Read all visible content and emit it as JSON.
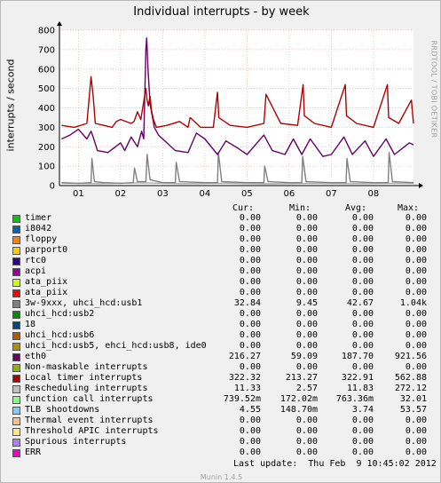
{
  "chart_data": {
    "type": "line",
    "title": "Individual interrupts - by week",
    "ylabel": "interrupts / second",
    "ylim": [
      0,
      800
    ],
    "yticks": [
      0,
      100,
      200,
      300,
      400,
      500,
      600,
      700,
      800
    ],
    "xticks": [
      "01",
      "02",
      "03",
      "04",
      "05",
      "06",
      "07",
      "08"
    ],
    "xlim": [
      0.55,
      8.95
    ],
    "grid": true,
    "series": [
      {
        "name": "Local timer interrupts",
        "color": "#b00000",
        "x": [
          0.6,
          0.9,
          1.2,
          1.3,
          1.35,
          1.4,
          1.6,
          1.8,
          1.9,
          2.0,
          2.25,
          2.32,
          2.4,
          2.48,
          2.6,
          2.63,
          2.66,
          2.7,
          2.73,
          2.78,
          2.85,
          3.1,
          3.4,
          3.6,
          3.65,
          3.9,
          4.2,
          4.3,
          4.33,
          4.6,
          5.0,
          5.4,
          5.45,
          5.8,
          6.2,
          6.33,
          6.36,
          6.6,
          7.0,
          7.33,
          7.36,
          7.6,
          8.0,
          8.33,
          8.36,
          8.6,
          8.9,
          8.95
        ],
        "values": [
          310,
          300,
          320,
          560,
          460,
          320,
          310,
          300,
          330,
          340,
          320,
          330,
          380,
          340,
          500,
          440,
          410,
          460,
          390,
          340,
          300,
          310,
          330,
          300,
          350,
          300,
          300,
          480,
          350,
          310,
          300,
          320,
          470,
          320,
          310,
          520,
          360,
          320,
          300,
          520,
          360,
          320,
          300,
          520,
          350,
          320,
          440,
          320
        ]
      },
      {
        "name": "eth0",
        "color": "#660066",
        "x": [
          0.6,
          0.8,
          1.0,
          1.2,
          1.3,
          1.35,
          1.45,
          1.7,
          2.0,
          2.1,
          2.25,
          2.4,
          2.5,
          2.55,
          2.6,
          2.62,
          2.65,
          2.7,
          2.75,
          2.8,
          2.9,
          3.1,
          3.3,
          3.6,
          3.8,
          4.0,
          4.3,
          4.5,
          4.8,
          5.0,
          5.4,
          5.6,
          5.9,
          6.1,
          6.3,
          6.5,
          6.8,
          7.0,
          7.3,
          7.5,
          7.8,
          8.0,
          8.3,
          8.5,
          8.85,
          8.95
        ],
        "values": [
          240,
          260,
          290,
          240,
          280,
          250,
          180,
          170,
          220,
          180,
          250,
          200,
          280,
          240,
          700,
          760,
          600,
          420,
          360,
          300,
          260,
          220,
          180,
          170,
          270,
          240,
          160,
          230,
          190,
          160,
          260,
          180,
          160,
          240,
          160,
          240,
          150,
          160,
          250,
          160,
          230,
          150,
          240,
          160,
          220,
          210
        ]
      },
      {
        "name": "3w-9xxx, uhci_hcd:usb1",
        "color": "#808080",
        "x": [
          0.6,
          1.0,
          1.3,
          1.32,
          1.38,
          1.6,
          2.0,
          2.3,
          2.33,
          2.4,
          2.6,
          2.63,
          2.7,
          3.0,
          3.3,
          3.32,
          3.4,
          4.0,
          4.3,
          4.32,
          4.4,
          5.0,
          5.4,
          5.42,
          5.5,
          6.0,
          6.3,
          6.32,
          6.4,
          7.0,
          7.35,
          7.37,
          7.45,
          8.0,
          8.35,
          8.37,
          8.45,
          8.95
        ],
        "values": [
          15,
          12,
          15,
          140,
          20,
          15,
          12,
          15,
          90,
          20,
          20,
          160,
          30,
          15,
          15,
          120,
          20,
          15,
          15,
          170,
          20,
          15,
          15,
          100,
          20,
          15,
          15,
          150,
          20,
          15,
          15,
          140,
          20,
          15,
          15,
          170,
          20,
          15
        ]
      },
      {
        "name": "Rescheduling interrupts",
        "color": "#a8a8a8",
        "x": [
          0.6,
          1.5,
          2.5,
          3.5,
          4.5,
          5.5,
          6.5,
          7.5,
          8.5,
          8.95
        ],
        "values": [
          12,
          10,
          14,
          10,
          12,
          9,
          11,
          10,
          12,
          11
        ]
      }
    ]
  },
  "legend": {
    "headers": {
      "cur": "Cur:",
      "min": "Min:",
      "avg": "Avg:",
      "max": "Max:"
    },
    "rows": [
      {
        "name": "timer",
        "color": "#00cc00",
        "cur": "0.00",
        "min": "0.00",
        "avg": "0.00",
        "max": "0.00"
      },
      {
        "name": "i8042",
        "color": "#0066b3",
        "cur": "0.00",
        "min": "0.00",
        "avg": "0.00",
        "max": "0.00"
      },
      {
        "name": "floppy",
        "color": "#ff8000",
        "cur": "0.00",
        "min": "0.00",
        "avg": "0.00",
        "max": "0.00"
      },
      {
        "name": "parport0",
        "color": "#ffcc00",
        "cur": "0.00",
        "min": "0.00",
        "avg": "0.00",
        "max": "0.00"
      },
      {
        "name": "rtc0",
        "color": "#330099",
        "cur": "0.00",
        "min": "0.00",
        "avg": "0.00",
        "max": "0.00"
      },
      {
        "name": "acpi",
        "color": "#990099",
        "cur": "0.00",
        "min": "0.00",
        "avg": "0.00",
        "max": "0.00"
      },
      {
        "name": "ata_piix",
        "color": "#ccff00",
        "cur": "0.00",
        "min": "0.00",
        "avg": "0.00",
        "max": "0.00"
      },
      {
        "name": "ata_piix",
        "color": "#ff0000",
        "cur": "0.00",
        "min": "0.00",
        "avg": "0.00",
        "max": "0.00"
      },
      {
        "name": "3w-9xxx, uhci_hcd:usb1",
        "color": "#808080",
        "cur": "32.84",
        "min": "9.45",
        "avg": "42.67",
        "max": "1.04k"
      },
      {
        "name": "uhci_hcd:usb2",
        "color": "#008f00",
        "cur": "0.00",
        "min": "0.00",
        "avg": "0.00",
        "max": "0.00"
      },
      {
        "name": "18",
        "color": "#00487d",
        "cur": "0.00",
        "min": "0.00",
        "avg": "0.00",
        "max": "0.00"
      },
      {
        "name": "uhci_hcd:usb6",
        "color": "#b35a00",
        "cur": "0.00",
        "min": "0.00",
        "avg": "0.00",
        "max": "0.00"
      },
      {
        "name": "uhci_hcd:usb5, ehci_hcd:usb8, ide0",
        "color": "#b38f00",
        "cur": "0.00",
        "min": "0.00",
        "avg": "0.00",
        "max": "0.00"
      },
      {
        "name": "eth0",
        "color": "#6b006b",
        "cur": "216.27",
        "min": "59.09",
        "avg": "187.70",
        "max": "921.56"
      },
      {
        "name": "Non-maskable interrupts",
        "color": "#8fb300",
        "cur": "0.00",
        "min": "0.00",
        "avg": "0.00",
        "max": "0.00"
      },
      {
        "name": "Local timer interrupts",
        "color": "#b30000",
        "cur": "322.32",
        "min": "213.27",
        "avg": "322.91",
        "max": "562.88"
      },
      {
        "name": "Rescheduling interrupts",
        "color": "#bebebe",
        "cur": "11.33",
        "min": "2.57",
        "avg": "11.83",
        "max": "272.12"
      },
      {
        "name": "function call interrupts",
        "color": "#80ff80",
        "cur": "739.52m",
        "min": "172.02m",
        "avg": "763.36m",
        "max": "32.01"
      },
      {
        "name": "TLB shootdowns",
        "color": "#80c9ff",
        "cur": "4.55",
        "min": "148.70m",
        "avg": "3.74",
        "max": "53.57"
      },
      {
        "name": "Thermal event interrupts",
        "color": "#ffc080",
        "cur": "0.00",
        "min": "0.00",
        "avg": "0.00",
        "max": "0.00"
      },
      {
        "name": "Threshold APIC interrupts",
        "color": "#ffe680",
        "cur": "0.00",
        "min": "0.00",
        "avg": "0.00",
        "max": "0.00"
      },
      {
        "name": "Spurious interrupts",
        "color": "#aa80ff",
        "cur": "0.00",
        "min": "0.00",
        "avg": "0.00",
        "max": "0.00"
      },
      {
        "name": "ERR",
        "color": "#ee00cc",
        "cur": "0.00",
        "min": "0.00",
        "avg": "0.00",
        "max": "0.00"
      }
    ]
  },
  "last_update": "Last update:  Thu Feb  9 10:45:02 2012",
  "watermark": "RRDTOOL / TOBI OETIKER",
  "footer": "Munin 1.4.5"
}
